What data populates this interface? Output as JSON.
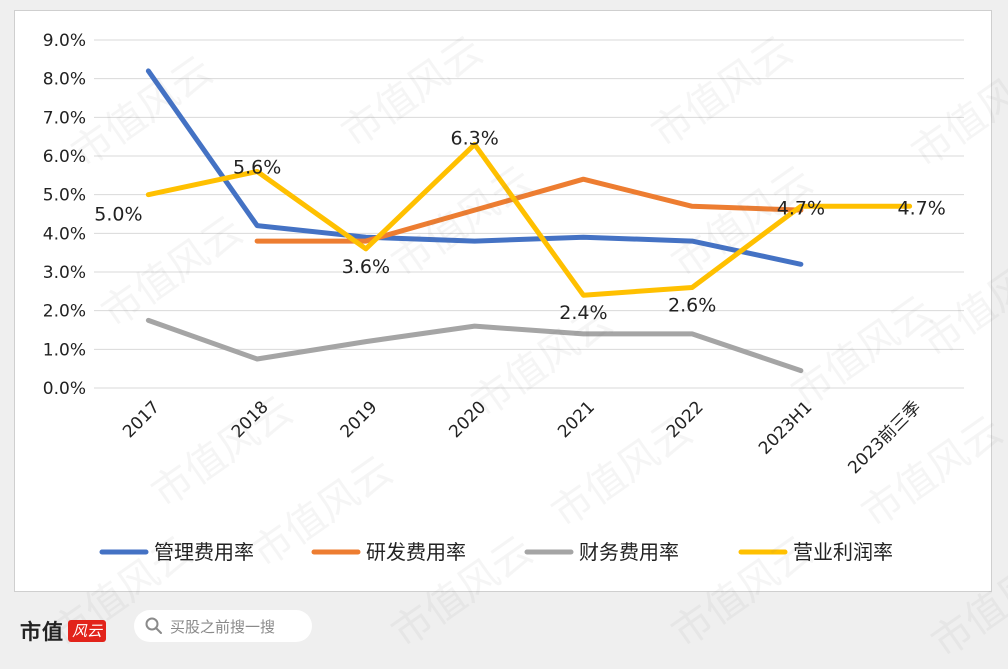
{
  "chart_data": {
    "type": "line",
    "categories": [
      "2017",
      "2018",
      "2019",
      "2020",
      "2021",
      "2022",
      "2023H1",
      "2023前三季"
    ],
    "ylim": [
      0,
      9
    ],
    "yticks": [
      "0.0%",
      "1.0%",
      "2.0%",
      "3.0%",
      "4.0%",
      "5.0%",
      "6.0%",
      "7.0%",
      "8.0%",
      "9.0%"
    ],
    "grid": true,
    "legend_position": "bottom",
    "series": [
      {
        "name": "管理费用率",
        "color": "#4472c4",
        "values": [
          8.2,
          4.2,
          3.9,
          3.8,
          3.9,
          3.8,
          3.2,
          null
        ]
      },
      {
        "name": "研发费用率",
        "color": "#ed7d31",
        "values": [
          null,
          3.8,
          3.8,
          4.6,
          5.4,
          4.7,
          4.6,
          null
        ]
      },
      {
        "name": "财务费用率",
        "color": "#a5a5a5",
        "values": [
          1.75,
          0.75,
          1.2,
          1.6,
          1.4,
          1.4,
          0.45,
          null
        ]
      },
      {
        "name": "营业利润率",
        "color": "#ffc000",
        "values": [
          5.0,
          5.6,
          3.6,
          6.3,
          2.4,
          2.6,
          4.7,
          4.7
        ],
        "labels": [
          "5.0%",
          "5.6%",
          "3.6%",
          "6.3%",
          "2.4%",
          "2.6%",
          "4.7%",
          "4.7%"
        ]
      }
    ]
  },
  "watermark": "市值风云",
  "footer": {
    "brand_name": "市值",
    "brand_mark": "风云",
    "search_placeholder": "买股之前搜一搜"
  }
}
